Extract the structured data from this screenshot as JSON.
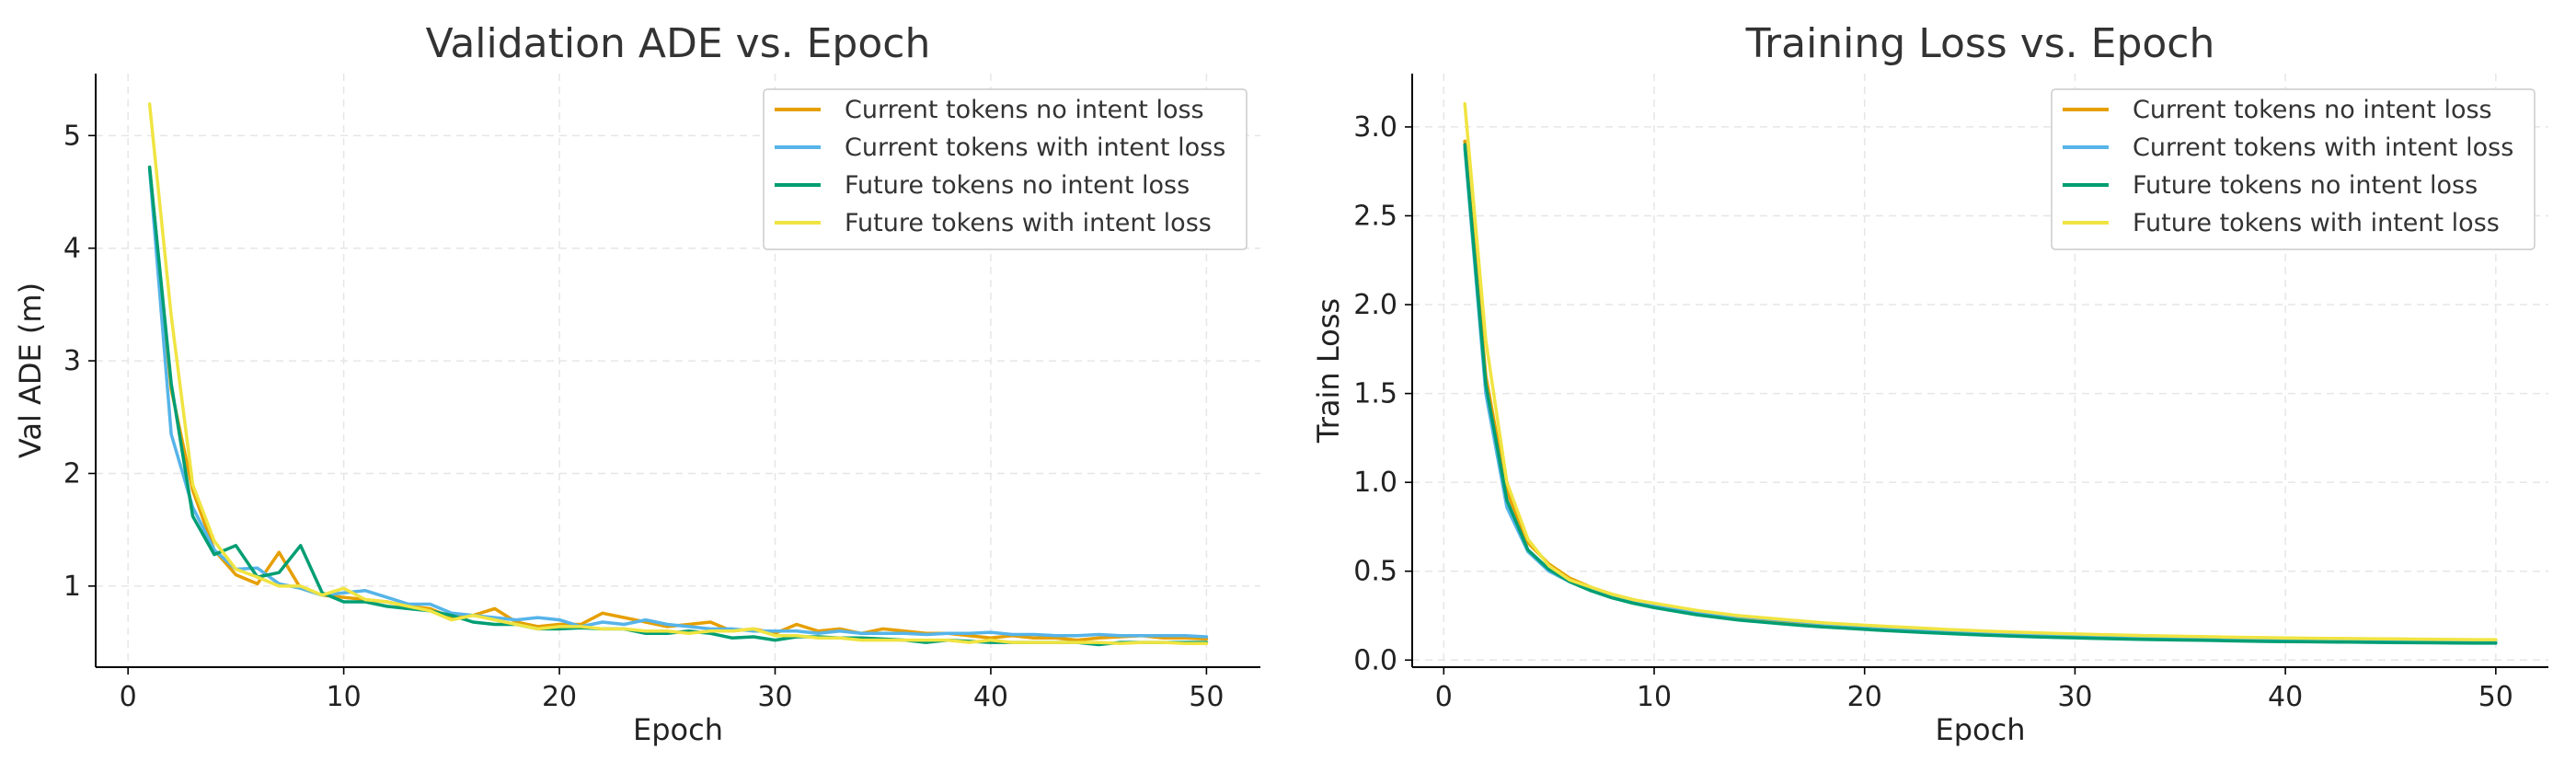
{
  "chart_data": [
    {
      "type": "line",
      "title": "Validation ADE vs. Epoch",
      "xlabel": "Epoch",
      "ylabel": "Val ADE (m)",
      "xlim": [
        -1.5,
        52.5
      ],
      "ylim": [
        0.28,
        5.55
      ],
      "xticks": [
        0,
        10,
        20,
        30,
        40,
        50
      ],
      "yticks": [
        1,
        2,
        3,
        4,
        5
      ],
      "ytick_labels": [
        "1",
        "2",
        "3",
        "4",
        "5"
      ],
      "grid": true,
      "legend_position": "top-right",
      "x": [
        1,
        2,
        3,
        4,
        5,
        6,
        7,
        8,
        9,
        10,
        11,
        12,
        13,
        14,
        15,
        16,
        17,
        18,
        19,
        20,
        21,
        22,
        23,
        24,
        25,
        26,
        27,
        28,
        29,
        30,
        31,
        32,
        33,
        34,
        35,
        36,
        37,
        38,
        39,
        40,
        41,
        42,
        43,
        44,
        45,
        46,
        47,
        48,
        49,
        50
      ],
      "series": [
        {
          "name": "Current tokens no intent loss",
          "color": "#E69F00",
          "values": [
            4.72,
            2.75,
            1.85,
            1.32,
            1.1,
            1.02,
            1.3,
            0.98,
            0.92,
            0.9,
            0.88,
            0.86,
            0.82,
            0.8,
            0.72,
            0.74,
            0.8,
            0.68,
            0.64,
            0.66,
            0.66,
            0.76,
            0.72,
            0.68,
            0.64,
            0.66,
            0.68,
            0.6,
            0.62,
            0.58,
            0.66,
            0.6,
            0.62,
            0.58,
            0.62,
            0.6,
            0.58,
            0.58,
            0.56,
            0.54,
            0.56,
            0.54,
            0.54,
            0.52,
            0.54,
            0.55,
            0.56,
            0.54,
            0.54,
            0.53
          ]
        },
        {
          "name": "Current tokens with intent loss",
          "color": "#56B4E9",
          "values": [
            4.7,
            2.35,
            1.7,
            1.32,
            1.15,
            1.16,
            1.02,
            0.98,
            0.92,
            0.94,
            0.96,
            0.9,
            0.84,
            0.84,
            0.76,
            0.74,
            0.72,
            0.7,
            0.72,
            0.7,
            0.64,
            0.68,
            0.66,
            0.7,
            0.66,
            0.64,
            0.62,
            0.62,
            0.6,
            0.6,
            0.6,
            0.58,
            0.6,
            0.58,
            0.58,
            0.58,
            0.57,
            0.58,
            0.58,
            0.59,
            0.57,
            0.57,
            0.56,
            0.56,
            0.57,
            0.56,
            0.56,
            0.56,
            0.56,
            0.55
          ]
        },
        {
          "name": "Future tokens no intent loss",
          "color": "#009E73",
          "values": [
            4.72,
            2.8,
            1.62,
            1.28,
            1.36,
            1.08,
            1.12,
            1.36,
            0.94,
            0.86,
            0.86,
            0.82,
            0.8,
            0.78,
            0.74,
            0.68,
            0.66,
            0.66,
            0.62,
            0.62,
            0.63,
            0.62,
            0.62,
            0.58,
            0.58,
            0.6,
            0.58,
            0.54,
            0.55,
            0.52,
            0.55,
            0.55,
            0.54,
            0.54,
            0.53,
            0.52,
            0.5,
            0.52,
            0.51,
            0.5,
            0.5,
            0.5,
            0.5,
            0.5,
            0.48,
            0.5,
            0.5,
            0.5,
            0.5,
            0.5
          ]
        },
        {
          "name": "Future tokens with intent loss",
          "color": "#F0E442",
          "values": [
            5.28,
            3.4,
            1.9,
            1.4,
            1.15,
            1.08,
            1.0,
            1.0,
            0.92,
            0.98,
            0.88,
            0.86,
            0.82,
            0.78,
            0.7,
            0.74,
            0.7,
            0.66,
            0.62,
            0.64,
            0.64,
            0.62,
            0.62,
            0.6,
            0.6,
            0.58,
            0.6,
            0.6,
            0.62,
            0.56,
            0.56,
            0.54,
            0.54,
            0.52,
            0.52,
            0.52,
            0.52,
            0.52,
            0.5,
            0.52,
            0.5,
            0.5,
            0.5,
            0.5,
            0.5,
            0.49,
            0.5,
            0.5,
            0.49,
            0.49
          ]
        }
      ]
    },
    {
      "type": "line",
      "title": "Training Loss vs. Epoch",
      "xlabel": "Epoch",
      "ylabel": "Train Loss",
      "xlim": [
        -1.5,
        52.5
      ],
      "ylim": [
        -0.04,
        3.3
      ],
      "xticks": [
        0,
        10,
        20,
        30,
        40,
        50
      ],
      "yticks": [
        0.0,
        0.5,
        1.0,
        1.5,
        2.0,
        2.5,
        3.0
      ],
      "ytick_labels": [
        "0.0",
        "0.5",
        "1.0",
        "1.5",
        "2.0",
        "2.5",
        "3.0"
      ],
      "grid": true,
      "legend_position": "top-right",
      "x": [
        1,
        2,
        3,
        4,
        5,
        6,
        7,
        8,
        9,
        10,
        11,
        12,
        13,
        14,
        15,
        16,
        17,
        18,
        19,
        20,
        21,
        22,
        23,
        24,
        25,
        26,
        27,
        28,
        29,
        30,
        31,
        32,
        33,
        34,
        35,
        36,
        37,
        38,
        39,
        40,
        41,
        42,
        43,
        44,
        45,
        46,
        47,
        48,
        49,
        50
      ],
      "series": [
        {
          "name": "Current tokens no intent loss",
          "color": "#E69F00",
          "values": [
            2.92,
            1.6,
            0.95,
            0.66,
            0.54,
            0.46,
            0.41,
            0.37,
            0.34,
            0.31,
            0.29,
            0.27,
            0.25,
            0.24,
            0.23,
            0.22,
            0.21,
            0.205,
            0.2,
            0.19,
            0.185,
            0.18,
            0.175,
            0.17,
            0.165,
            0.16,
            0.155,
            0.15,
            0.148,
            0.145,
            0.142,
            0.14,
            0.138,
            0.135,
            0.133,
            0.13,
            0.128,
            0.126,
            0.124,
            0.122,
            0.12,
            0.119,
            0.118,
            0.117,
            0.116,
            0.115,
            0.114,
            0.113,
            0.112,
            0.112
          ]
        },
        {
          "name": "Current tokens with intent loss",
          "color": "#56B4E9",
          "values": [
            2.88,
            1.5,
            0.86,
            0.61,
            0.5,
            0.44,
            0.4,
            0.36,
            0.33,
            0.31,
            0.29,
            0.27,
            0.255,
            0.245,
            0.235,
            0.225,
            0.215,
            0.205,
            0.198,
            0.19,
            0.183,
            0.177,
            0.171,
            0.165,
            0.16,
            0.155,
            0.151,
            0.147,
            0.143,
            0.14,
            0.137,
            0.134,
            0.131,
            0.129,
            0.127,
            0.125,
            0.123,
            0.121,
            0.119,
            0.117,
            0.116,
            0.115,
            0.114,
            0.113,
            0.112,
            0.111,
            0.11,
            0.109,
            0.108,
            0.108
          ]
        },
        {
          "name": "Future tokens no intent loss",
          "color": "#009E73",
          "values": [
            2.9,
            1.55,
            0.9,
            0.62,
            0.51,
            0.44,
            0.39,
            0.35,
            0.32,
            0.295,
            0.275,
            0.255,
            0.24,
            0.225,
            0.215,
            0.205,
            0.195,
            0.187,
            0.18,
            0.173,
            0.166,
            0.16,
            0.154,
            0.149,
            0.144,
            0.139,
            0.135,
            0.131,
            0.128,
            0.125,
            0.122,
            0.119,
            0.117,
            0.115,
            0.113,
            0.111,
            0.109,
            0.107,
            0.105,
            0.104,
            0.103,
            0.102,
            0.101,
            0.1,
            0.099,
            0.098,
            0.097,
            0.096,
            0.095,
            0.095
          ]
        },
        {
          "name": "Future tokens with intent loss",
          "color": "#F0E442",
          "values": [
            3.13,
            1.8,
            1.0,
            0.68,
            0.53,
            0.45,
            0.41,
            0.37,
            0.34,
            0.32,
            0.3,
            0.28,
            0.265,
            0.25,
            0.24,
            0.23,
            0.22,
            0.21,
            0.203,
            0.196,
            0.19,
            0.184,
            0.178,
            0.172,
            0.167,
            0.162,
            0.158,
            0.154,
            0.15,
            0.147,
            0.144,
            0.141,
            0.138,
            0.136,
            0.134,
            0.132,
            0.13,
            0.128,
            0.126,
            0.124,
            0.123,
            0.122,
            0.121,
            0.12,
            0.119,
            0.118,
            0.117,
            0.116,
            0.115,
            0.115
          ]
        }
      ]
    }
  ]
}
